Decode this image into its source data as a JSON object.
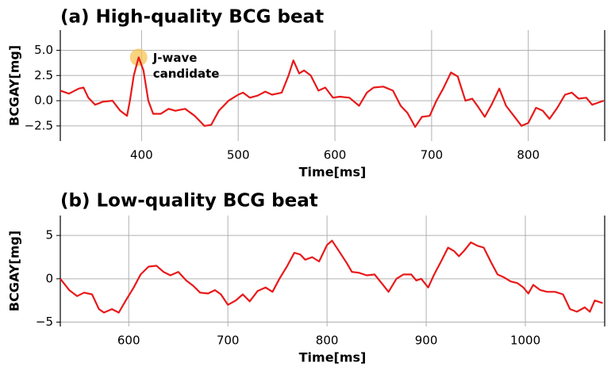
{
  "chart_data": [
    {
      "type": "line",
      "title": "(a) High-quality BCG beat",
      "xlabel": "Time[ms]",
      "ylabel": "BCGAY[mg]",
      "xlim": [
        316,
        879
      ],
      "ylim": [
        -4,
        7
      ],
      "xticks": [
        400,
        500,
        600,
        700,
        800
      ],
      "yticks": [
        {
          "value": 5,
          "label": "5.0"
        },
        2.5,
        {
          "value": 0,
          "label": "0.0"
        },
        {
          "value": -2.5,
          "label": "−2.5"
        }
      ],
      "grid": true,
      "annotation": {
        "lines": [
          "J-wave",
          "candidate"
        ],
        "x": 397,
        "y": 4.3,
        "color": "#f5c04a"
      },
      "series": [
        {
          "color": "#e8191a",
          "x": [
            316,
            325,
            335,
            340,
            345,
            352,
            360,
            370,
            378,
            385,
            388,
            392,
            397,
            402,
            407,
            412,
            420,
            428,
            435,
            445,
            455,
            465,
            472,
            480,
            490,
            500,
            505,
            512,
            520,
            528,
            535,
            545,
            552,
            557,
            563,
            568,
            575,
            583,
            590,
            598,
            605,
            615,
            625,
            633,
            640,
            650,
            660,
            668,
            675,
            683,
            690,
            698,
            705,
            712,
            720,
            727,
            735,
            742,
            748,
            755,
            762,
            770,
            777,
            785,
            793,
            800,
            808,
            815,
            822,
            830,
            838,
            845,
            852,
            860,
            866,
            872,
            878
          ],
          "values": [
            1.0,
            0.7,
            1.2,
            1.3,
            0.3,
            -0.4,
            -0.1,
            0.0,
            -1.0,
            -1.5,
            0.0,
            2.5,
            4.3,
            3.0,
            0.0,
            -1.3,
            -1.3,
            -0.8,
            -1.0,
            -0.8,
            -1.5,
            -2.5,
            -2.4,
            -1.0,
            0.0,
            0.6,
            0.8,
            0.3,
            0.5,
            0.9,
            0.6,
            0.8,
            2.5,
            4.0,
            2.7,
            3.0,
            2.5,
            1.0,
            1.3,
            0.3,
            0.4,
            0.3,
            -0.5,
            0.8,
            1.3,
            1.4,
            1.0,
            -0.5,
            -1.2,
            -2.6,
            -1.6,
            -1.5,
            0.0,
            1.2,
            2.8,
            2.4,
            0.0,
            0.2,
            -0.6,
            -1.6,
            -0.4,
            1.2,
            -0.5,
            -1.5,
            -2.5,
            -2.2,
            -0.7,
            -1.0,
            -1.8,
            -0.7,
            0.6,
            0.8,
            0.2,
            0.3,
            -0.4,
            -0.2,
            0.0
          ]
        }
      ]
    },
    {
      "type": "line",
      "title": "(b) Low-quality BCG beat",
      "xlabel": "Time[ms]",
      "ylabel": "BCGAY[mg]",
      "xlim": [
        531,
        1080
      ],
      "ylim": [
        -5.5,
        7.3
      ],
      "xticks": [
        600,
        700,
        800,
        900,
        1000
      ],
      "yticks": [
        5,
        0,
        {
          "value": -5,
          "label": "−5"
        }
      ],
      "grid": true,
      "series": [
        {
          "color": "#e8191a",
          "x": [
            531,
            540,
            548,
            555,
            563,
            570,
            575,
            583,
            590,
            597,
            605,
            612,
            620,
            628,
            635,
            642,
            650,
            658,
            665,
            672,
            680,
            687,
            693,
            700,
            708,
            715,
            722,
            730,
            738,
            745,
            752,
            760,
            767,
            773,
            778,
            785,
            792,
            800,
            805,
            812,
            820,
            825,
            832,
            840,
            848,
            855,
            862,
            870,
            877,
            885,
            890,
            895,
            902,
            908,
            915,
            922,
            928,
            933,
            938,
            945,
            952,
            958,
            965,
            972,
            978,
            985,
            992,
            998,
            1003,
            1008,
            1015,
            1022,
            1030,
            1038,
            1045,
            1052,
            1060,
            1065,
            1070,
            1078
          ],
          "values": [
            0.0,
            -1.3,
            -2.0,
            -1.6,
            -1.8,
            -3.5,
            -3.9,
            -3.5,
            -3.9,
            -2.5,
            -1.0,
            0.5,
            1.4,
            1.5,
            0.8,
            0.4,
            0.8,
            -0.2,
            -0.8,
            -1.6,
            -1.7,
            -1.3,
            -1.8,
            -3.0,
            -2.5,
            -1.8,
            -2.6,
            -1.4,
            -1.0,
            -1.5,
            0.0,
            1.5,
            3.0,
            2.8,
            2.2,
            2.5,
            2.0,
            3.9,
            4.4,
            3.2,
            1.8,
            0.8,
            0.7,
            0.4,
            0.5,
            -0.5,
            -1.5,
            0.0,
            0.5,
            0.5,
            -0.2,
            0.0,
            -1.0,
            0.5,
            2.0,
            3.6,
            3.2,
            2.6,
            3.2,
            4.2,
            3.8,
            3.6,
            2.0,
            0.5,
            0.2,
            -0.3,
            -0.5,
            -1.0,
            -1.7,
            -0.7,
            -1.3,
            -1.5,
            -1.5,
            -1.8,
            -3.5,
            -3.8,
            -3.3,
            -3.8,
            -2.5,
            -2.8
          ]
        }
      ]
    }
  ]
}
